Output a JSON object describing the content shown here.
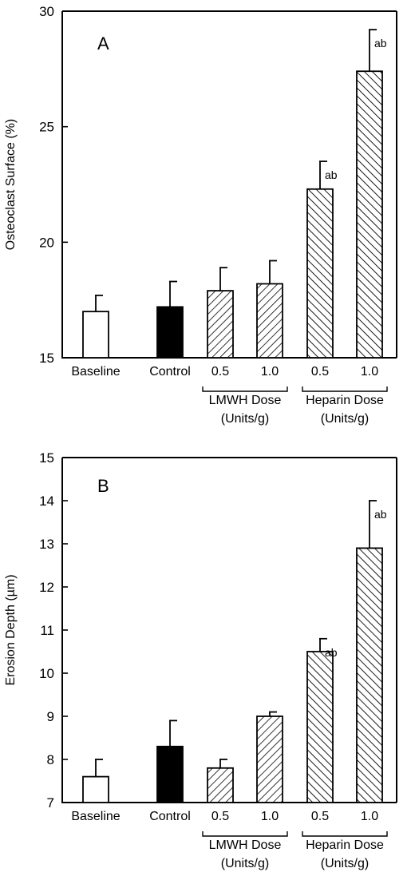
{
  "chart_data": [
    {
      "type": "bar",
      "panel_label": "A",
      "ylabel": "Osteoclast Surface (%)",
      "ylim": [
        15,
        30
      ],
      "yticks": [
        "15",
        "20",
        "25",
        "30"
      ],
      "categories": [
        "Baseline",
        "Control",
        "0.5",
        "1.0",
        "0.5",
        "1.0"
      ],
      "groups": [
        {
          "label_line1": "LMWH Dose",
          "label_line2": "(Units/g)",
          "members": [
            2,
            3
          ]
        },
        {
          "label_line1": "Heparin Dose",
          "label_line2": "(Units/g)",
          "members": [
            4,
            5
          ]
        }
      ],
      "series": [
        {
          "values": [
            17.0,
            17.2,
            17.9,
            18.2,
            22.3,
            27.4
          ],
          "errors": [
            0.7,
            1.1,
            1.0,
            1.0,
            1.2,
            1.8
          ],
          "fills": [
            "white",
            "black",
            "hatch",
            "hatch",
            "hatch-dense",
            "hatch-dense"
          ],
          "annotations": [
            "",
            "",
            "",
            "",
            "ab",
            "ab"
          ]
        }
      ]
    },
    {
      "type": "bar",
      "panel_label": "B",
      "ylabel": "Erosion Depth (µm)",
      "ylim": [
        7,
        15
      ],
      "yticks": [
        "7",
        "8",
        "9",
        "10",
        "11",
        "12",
        "13",
        "14",
        "15"
      ],
      "categories": [
        "Baseline",
        "Control",
        "0.5",
        "1.0",
        "0.5",
        "1.0"
      ],
      "groups": [
        {
          "label_line1": "LMWH Dose",
          "label_line2": "(Units/g)",
          "members": [
            2,
            3
          ]
        },
        {
          "label_line1": "Heparin Dose",
          "label_line2": "(Units/g)",
          "members": [
            4,
            5
          ]
        }
      ],
      "series": [
        {
          "values": [
            7.6,
            8.3,
            7.8,
            9.0,
            10.5,
            12.9
          ],
          "errors": [
            0.4,
            0.6,
            0.2,
            0.1,
            0.3,
            1.1
          ],
          "fills": [
            "white",
            "black",
            "hatch",
            "hatch",
            "hatch-dense",
            "hatch-dense"
          ],
          "annotations": [
            "",
            "",
            "",
            "",
            "ab",
            "ab"
          ]
        }
      ]
    }
  ]
}
